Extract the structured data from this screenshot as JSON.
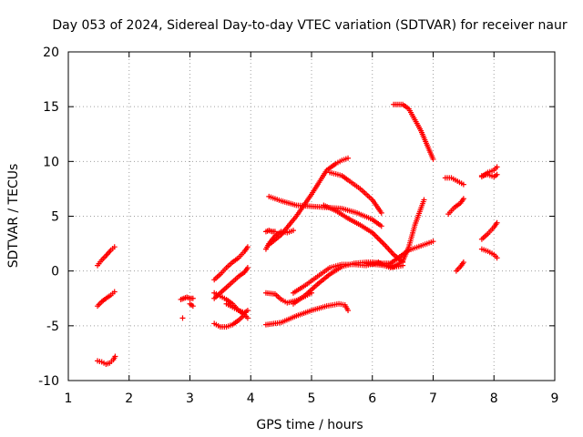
{
  "chart_data": {
    "type": "scatter",
    "title": "Day 053 of 2024, Sidereal Day-to-day VTEC variation (SDTVAR) for receiver naur",
    "xlabel": "GPS time / hours",
    "ylabel": "SDTVAR / TECUs",
    "xlim": [
      1,
      9
    ],
    "ylim": [
      -10,
      20
    ],
    "xticks": [
      "1",
      "2",
      "3",
      "4",
      "5",
      "6",
      "7",
      "8",
      "9"
    ],
    "yticks": [
      "-10",
      "-5",
      "0",
      "5",
      "10",
      "15",
      "20"
    ],
    "grid": true,
    "marker": "+",
    "marker_color": "#ff0000",
    "series": [
      {
        "x": [
          1.48,
          1.55,
          1.62,
          1.7,
          1.76
        ],
        "y": [
          0.5,
          1.0,
          1.4,
          1.9,
          2.2
        ]
      },
      {
        "x": [
          1.48,
          1.55,
          1.62,
          1.7,
          1.76
        ],
        "y": [
          -3.2,
          -2.8,
          -2.5,
          -2.2,
          -1.9
        ]
      },
      {
        "x": [
          1.48,
          1.55,
          1.62,
          1.68,
          1.74,
          1.77
        ],
        "y": [
          -8.2,
          -8.3,
          -8.5,
          -8.4,
          -8.1,
          -7.8
        ]
      },
      {
        "x": [
          2.85,
          2.9,
          2.95,
          3.0,
          3.05
        ],
        "y": [
          -2.6,
          -2.5,
          -2.4,
          -2.5,
          -2.5
        ]
      },
      {
        "x": [
          2.88
        ],
        "y": [
          -4.3
        ]
      },
      {
        "x": [
          3.0,
          3.05
        ],
        "y": [
          -3.0,
          -3.2
        ]
      },
      {
        "x": [
          3.4,
          3.5,
          3.6,
          3.7,
          3.8,
          3.9,
          3.95
        ],
        "y": [
          -0.8,
          -0.3,
          0.3,
          0.8,
          1.2,
          1.8,
          2.2
        ]
      },
      {
        "x": [
          3.4,
          3.5,
          3.6,
          3.7,
          3.8,
          3.9,
          3.95
        ],
        "y": [
          -2.5,
          -2.0,
          -1.5,
          -1.0,
          -0.5,
          -0.1,
          0.3
        ]
      },
      {
        "x": [
          3.4,
          3.5,
          3.6,
          3.7,
          3.8,
          3.9,
          3.95
        ],
        "y": [
          -2.0,
          -2.3,
          -2.6,
          -3.0,
          -3.6,
          -4.0,
          -4.3
        ]
      },
      {
        "x": [
          3.4,
          3.5,
          3.6,
          3.7,
          3.8,
          3.9
        ],
        "y": [
          -4.8,
          -5.1,
          -5.1,
          -4.9,
          -4.5,
          -4.0
        ]
      },
      {
        "x": [
          3.6,
          3.7,
          3.8,
          3.9,
          3.95
        ],
        "y": [
          -3.0,
          -3.3,
          -3.6,
          -3.8,
          -3.6
        ]
      },
      {
        "x": [
          4.25,
          4.3,
          4.4,
          4.5,
          4.6,
          4.7
        ],
        "y": [
          2.0,
          2.5,
          3.2,
          3.6,
          3.5,
          3.7
        ]
      },
      {
        "x": [
          4.25,
          4.3,
          4.35,
          4.4
        ],
        "y": [
          3.6,
          3.7,
          3.6,
          3.6
        ]
      },
      {
        "x": [
          4.25,
          4.5,
          4.75,
          5.0,
          5.25,
          5.45,
          5.55,
          5.6
        ],
        "y": [
          -4.9,
          -4.7,
          -4.1,
          -3.6,
          -3.2,
          -3.0,
          -3.1,
          -3.6
        ]
      },
      {
        "x": [
          4.25,
          4.4,
          4.5,
          4.6,
          4.75,
          4.9,
          5.0
        ],
        "y": [
          -2.0,
          -2.1,
          -2.6,
          -2.9,
          -2.7,
          -2.3,
          -2.0
        ]
      },
      {
        "x": [
          4.3,
          4.5,
          4.75,
          5.0,
          5.25,
          5.5,
          5.75,
          6.0,
          6.15
        ],
        "y": [
          6.8,
          6.4,
          6.0,
          5.9,
          5.8,
          5.7,
          5.3,
          4.7,
          4.1
        ]
      },
      {
        "x": [
          4.3,
          4.5,
          4.75,
          5.0,
          5.25,
          5.4,
          5.5,
          5.6
        ],
        "y": [
          2.4,
          3.3,
          5.0,
          7.0,
          9.2,
          9.8,
          10.1,
          10.3
        ]
      },
      {
        "x": [
          4.7,
          4.9,
          5.1,
          5.3,
          5.5,
          5.7,
          5.9,
          6.0,
          6.15,
          6.3,
          6.45,
          6.6,
          6.8,
          7.0
        ],
        "y": [
          -3.0,
          -2.2,
          -1.2,
          -0.3,
          0.4,
          0.7,
          0.8,
          0.8,
          0.7,
          0.7,
          1.3,
          1.9,
          2.3,
          2.7
        ]
      },
      {
        "x": [
          4.7,
          4.9,
          5.1,
          5.3,
          5.5,
          5.7,
          5.9,
          6.1,
          6.2,
          6.35,
          6.5,
          6.6,
          6.7,
          6.85
        ],
        "y": [
          -2.0,
          -1.3,
          -0.5,
          0.3,
          0.6,
          0.6,
          0.5,
          0.8,
          0.5,
          0.4,
          0.9,
          2.2,
          4.2,
          6.5
        ]
      },
      {
        "x": [
          5.2,
          5.4,
          5.6,
          5.8,
          6.0,
          6.2,
          6.35,
          6.5
        ],
        "y": [
          6.0,
          5.5,
          4.8,
          4.2,
          3.5,
          2.4,
          1.5,
          0.8
        ]
      },
      {
        "x": [
          5.3,
          5.5,
          5.6,
          5.8,
          6.0,
          6.15
        ],
        "y": [
          9.0,
          8.7,
          8.3,
          7.5,
          6.5,
          5.3
        ]
      },
      {
        "x": [
          5.9,
          6.05,
          6.2,
          6.3,
          6.4,
          6.5
        ],
        "y": [
          0.7,
          0.6,
          0.5,
          0.3,
          0.4,
          0.5
        ]
      },
      {
        "x": [
          6.35,
          6.5,
          6.6,
          6.7,
          6.8,
          6.9,
          7.0
        ],
        "y": [
          15.2,
          15.2,
          14.8,
          13.8,
          12.8,
          11.5,
          10.2
        ]
      },
      {
        "x": [
          7.25,
          7.35,
          7.45,
          7.5
        ],
        "y": [
          5.2,
          5.8,
          6.2,
          6.6
        ]
      },
      {
        "x": [
          7.2,
          7.3,
          7.4,
          7.5
        ],
        "y": [
          8.5,
          8.5,
          8.2,
          7.9
        ]
      },
      {
        "x": [
          7.38,
          7.45,
          7.5
        ],
        "y": [
          0.0,
          0.4,
          0.8
        ]
      },
      {
        "x": [
          7.8,
          7.9,
          8.0,
          8.05
        ],
        "y": [
          8.6,
          9.0,
          9.2,
          9.5
        ]
      },
      {
        "x": [
          7.8,
          7.9,
          8.0,
          8.05
        ],
        "y": [
          8.7,
          8.8,
          8.6,
          8.8
        ]
      },
      {
        "x": [
          7.8,
          7.9,
          8.0,
          8.05
        ],
        "y": [
          2.9,
          3.4,
          4.0,
          4.4
        ]
      },
      {
        "x": [
          7.8,
          7.9,
          8.0,
          8.05
        ],
        "y": [
          2.0,
          1.8,
          1.5,
          1.2
        ]
      }
    ]
  }
}
